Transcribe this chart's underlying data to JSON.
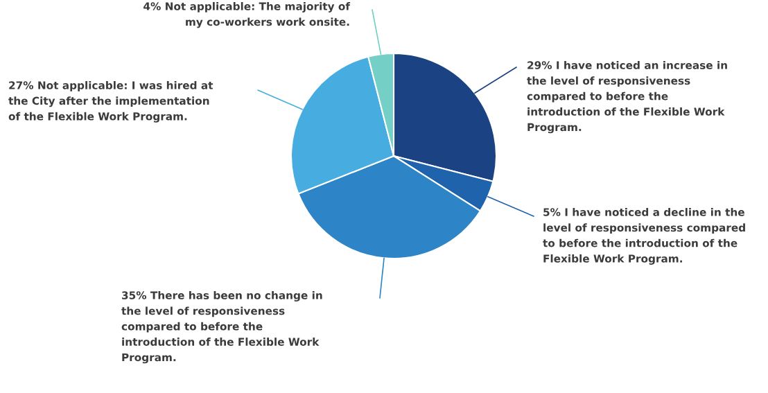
{
  "chart_data": {
    "type": "pie",
    "categories": [
      "29% I have noticed an increase in\nthe level of responsiveness\ncompared to before the\nintroduction of the Flexible Work\nProgram.",
      "5% I have noticed a decline in the\nlevel of responsiveness compared\nto before the introduction of the\nFlexible Work Program.",
      "35% There has been no change in\nthe level of responsiveness\ncompared to before the\nintroduction of the Flexible Work\nProgram.",
      "27% Not applicable: I was hired at\nthe City after the implementation\nof the Flexible Work Program.",
      "4% Not applicable: The majority of\nmy co-workers work onsite."
    ],
    "values": [
      29,
      5,
      35,
      27,
      4
    ],
    "colors": [
      "#1b4383",
      "#1f63ad",
      "#2d85c8",
      "#47ade0",
      "#74cfc6"
    ],
    "legend": false
  }
}
